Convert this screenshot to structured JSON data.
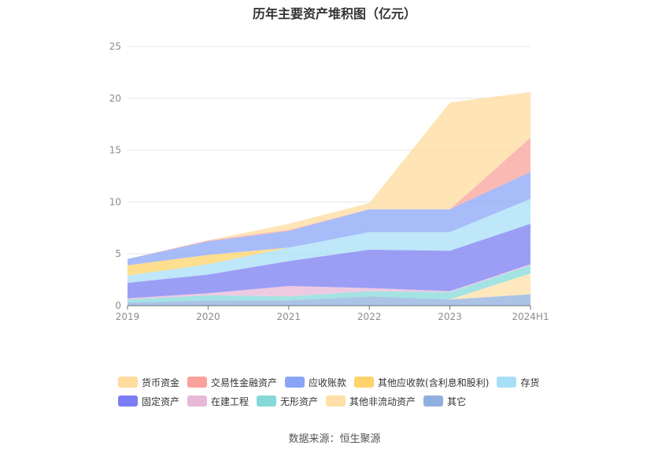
{
  "chart_data": {
    "type": "area",
    "stacked": true,
    "title": "历年主要资产堆积图（亿元）",
    "categories": [
      "2019",
      "2020",
      "2021",
      "2022",
      "2023",
      "2024H1"
    ],
    "y_ticks": [
      "0",
      "5",
      "10",
      "15",
      "20",
      "25"
    ],
    "ylim": [
      0,
      25
    ],
    "grid": true,
    "series": [
      {
        "name": "其它",
        "color": "#8fb0de",
        "values": [
          0.3,
          0.5,
          0.5,
          0.9,
          0.6,
          1.1
        ]
      },
      {
        "name": "其他非流动资产",
        "color": "#ffe0a8",
        "values": [
          0.0,
          0.0,
          0.0,
          0.0,
          0.0,
          2.0
        ]
      },
      {
        "name": "无形资产",
        "color": "#86d9d9",
        "values": [
          0.3,
          0.5,
          0.4,
          0.5,
          0.7,
          0.8
        ]
      },
      {
        "name": "在建工程",
        "color": "#e8b8d8",
        "values": [
          0.1,
          0.2,
          1.0,
          0.3,
          0.1,
          0.1
        ]
      },
      {
        "name": "固定资产",
        "color": "#7b7ef2",
        "values": [
          1.5,
          1.8,
          2.4,
          3.7,
          3.9,
          3.9
        ]
      },
      {
        "name": "存货",
        "color": "#a8dff7",
        "values": [
          0.7,
          1.0,
          1.3,
          1.7,
          1.8,
          2.4
        ]
      },
      {
        "name": "其他应收款(含利息和股利)",
        "color": "#fdd36a",
        "values": [
          1.0,
          0.9,
          0.0,
          0.0,
          0.0,
          0.0
        ]
      },
      {
        "name": "应收账款",
        "color": "#8aa5f7",
        "values": [
          0.6,
          1.3,
          1.6,
          2.2,
          2.2,
          2.6
        ]
      },
      {
        "name": "交易性金融资产",
        "color": "#f9a29b",
        "values": [
          0.0,
          0.1,
          0.1,
          0.0,
          0.0,
          3.3
        ]
      },
      {
        "name": "货币资金",
        "color": "#ffdb9e",
        "values": [
          0.0,
          0.0,
          0.6,
          0.6,
          10.3,
          4.4
        ]
      }
    ],
    "legend": [
      [
        "货币资金",
        "交易性金融资产",
        "应收账款",
        "其他应收款(含利息和股利)",
        "存货"
      ],
      [
        "固定资产",
        "在建工程",
        "无形资产",
        "其他非流动资产",
        "其它"
      ]
    ],
    "legend_position": "bottom"
  },
  "source_text": "数据来源：恒生聚源"
}
